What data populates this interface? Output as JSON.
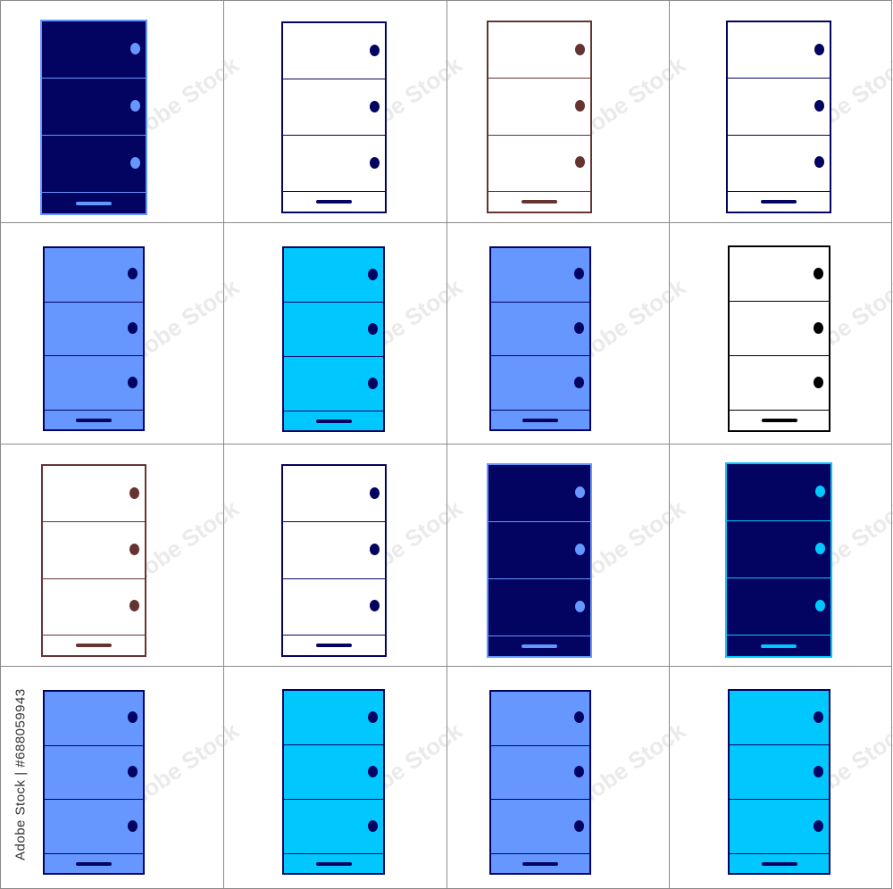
{
  "watermark_text": "Adobe Stock",
  "stock_id": "Adobe Stock | #688059943",
  "colors": {
    "navy": "#030361",
    "periwinkle": "#6597ff",
    "cyan": "#00c8ff",
    "brown": "#663333",
    "black": "#000000",
    "white": "#ffffff",
    "grid_line": "#8a8a8a"
  },
  "cabinets": [
    {
      "fill": "#030361",
      "border": "#6597ff",
      "line": "#6597ff",
      "knob": "#6597ff",
      "handle": "#6597ff"
    },
    {
      "fill": "#ffffff",
      "border": "#030361",
      "line": "#030361",
      "knob": "#030361",
      "handle": "#030361"
    },
    {
      "fill": "#ffffff",
      "border": "#663333",
      "line": "#663333",
      "knob": "#663333",
      "handle": "#663333"
    },
    {
      "fill": "#ffffff",
      "border": "#030361",
      "line": "#030361",
      "knob": "#030361",
      "handle": "#030361"
    },
    {
      "fill": "#6597ff",
      "border": "#030361",
      "line": "#030361",
      "knob": "#030361",
      "handle": "#030361"
    },
    {
      "fill": "#00c8ff",
      "border": "#030361",
      "line": "#030361",
      "knob": "#030361",
      "handle": "#030361"
    },
    {
      "fill": "#6597ff",
      "border": "#030361",
      "line": "#030361",
      "knob": "#030361",
      "handle": "#030361"
    },
    {
      "fill": "#ffffff",
      "border": "#000000",
      "line": "#000000",
      "knob": "#000000",
      "handle": "#000000"
    },
    {
      "fill": "#ffffff",
      "border": "#663333",
      "line": "#663333",
      "knob": "#663333",
      "handle": "#663333"
    },
    {
      "fill": "#ffffff",
      "border": "#030361",
      "line": "#030361",
      "knob": "#030361",
      "handle": "#030361"
    },
    {
      "fill": "#030361",
      "border": "#6597ff",
      "line": "#6597ff",
      "knob": "#6597ff",
      "handle": "#6597ff"
    },
    {
      "fill": "#030361",
      "border": "#00c8ff",
      "line": "#00c8ff",
      "knob": "#00c8ff",
      "handle": "#00c8ff"
    },
    {
      "fill": "#6597ff",
      "border": "#030361",
      "line": "#030361",
      "knob": "#030361",
      "handle": "#030361"
    },
    {
      "fill": "#00c8ff",
      "border": "#030361",
      "line": "#030361",
      "knob": "#030361",
      "handle": "#030361"
    },
    {
      "fill": "#6597ff",
      "border": "#030361",
      "line": "#030361",
      "knob": "#030361",
      "handle": "#030361"
    },
    {
      "fill": "#00c8ff",
      "border": "#030361",
      "line": "#030361",
      "knob": "#030361",
      "handle": "#030361"
    }
  ]
}
